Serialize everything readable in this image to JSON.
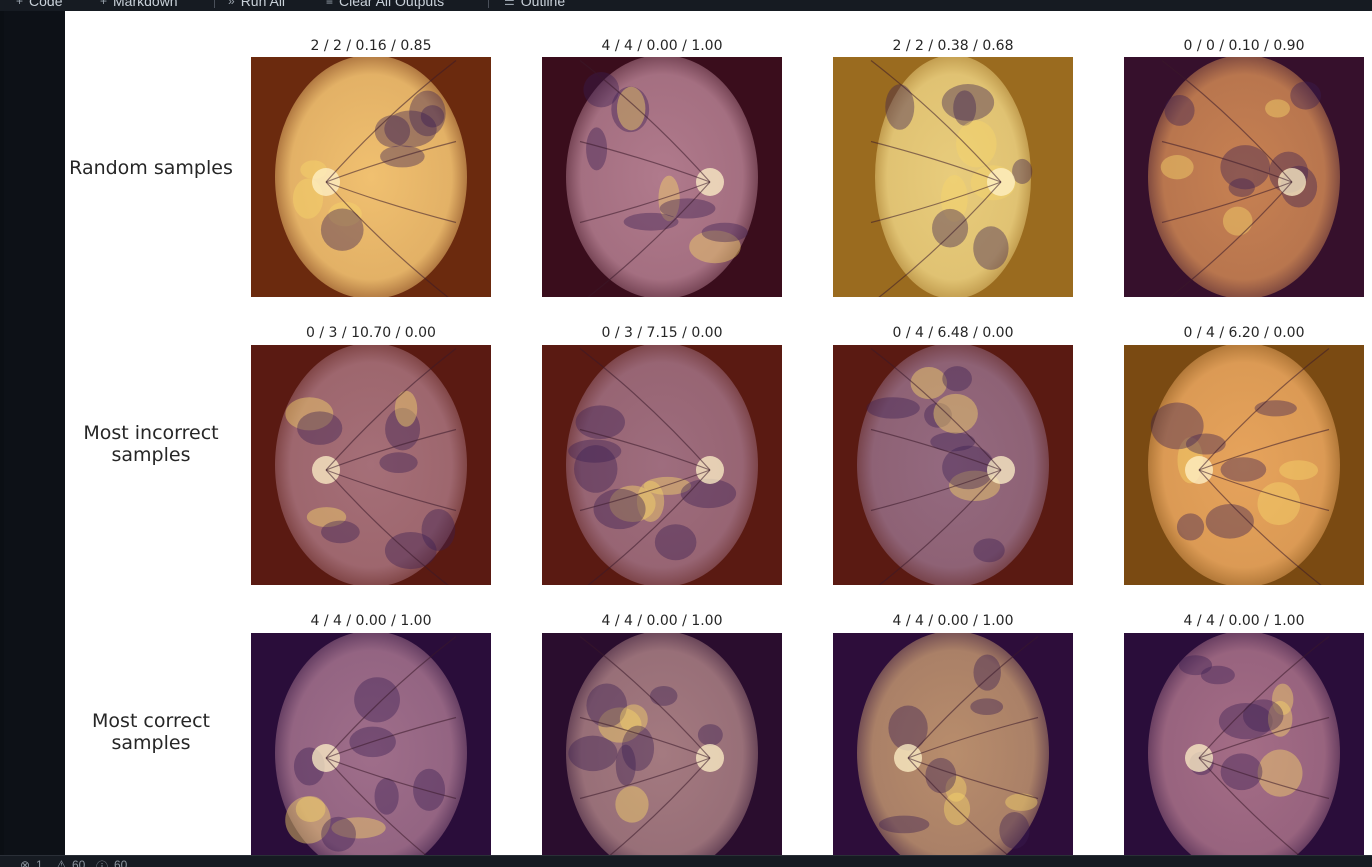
{
  "toolbar": {
    "items": [
      {
        "icon": "plus-icon",
        "label": "Code"
      },
      {
        "icon": "plus-icon",
        "label": "Markdown"
      },
      {
        "icon": "run-all-icon",
        "label": "Run All"
      },
      {
        "icon": "clear-outputs-icon",
        "label": "Clear All Outputs"
      },
      {
        "icon": "outline-icon",
        "label": "Outline"
      }
    ]
  },
  "status_bar": {
    "items": [
      {
        "icon": "error-icon",
        "label": "1"
      },
      {
        "icon": "warning-icon",
        "label": "60"
      },
      {
        "icon": "info-icon",
        "label": "60"
      }
    ]
  },
  "figure": {
    "rows": [
      {
        "label": "Random samples",
        "cells": [
          {
            "title": "2 / 2 / 0.16 / 0.85",
            "bg": "#6b2a0e",
            "fundus": "#f0c070",
            "side": "left"
          },
          {
            "title": "4 / 4 / 0.00 / 1.00",
            "bg": "#3a0d1c",
            "fundus": "#b07a8c",
            "side": "right"
          },
          {
            "title": "2 / 2 / 0.38 / 0.68",
            "bg": "#9a6b1f",
            "fundus": "#e8cc7c",
            "side": "right"
          },
          {
            "title": "0 / 0 / 0.10 / 0.90",
            "bg": "#36102c",
            "fundus": "#c78152",
            "side": "right"
          }
        ]
      },
      {
        "label": "Most incorrect samples",
        "cells": [
          {
            "title": "0 / 3 / 10.70 / 0.00",
            "bg": "#5a1a12",
            "fundus": "#a56f78",
            "side": "left"
          },
          {
            "title": "0 / 3 / 7.15 / 0.00",
            "bg": "#5a1a12",
            "fundus": "#9e6d7e",
            "side": "right"
          },
          {
            "title": "0 / 4 / 6.48 / 0.00",
            "bg": "#5a1a12",
            "fundus": "#946a80",
            "side": "right"
          },
          {
            "title": "0 / 4 / 6.20 / 0.00",
            "bg": "#7a4a12",
            "fundus": "#e6a35c",
            "side": "left"
          }
        ]
      },
      {
        "label": "Most correct samples",
        "cells": [
          {
            "title": "4 / 4 / 0.00 / 1.00",
            "bg": "#2a0d3a",
            "fundus": "#9f6e8a",
            "side": "left"
          },
          {
            "title": "4 / 4 / 0.00 / 1.00",
            "bg": "#2a0d2e",
            "fundus": "#a47a80",
            "side": "right"
          },
          {
            "title": "4 / 4 / 0.00 / 1.00",
            "bg": "#2d0d3a",
            "fundus": "#b88d6c",
            "side": "left"
          },
          {
            "title": "4 / 4 / 0.00 / 1.00",
            "bg": "#2a0d3a",
            "fundus": "#a46d86",
            "side": "left"
          }
        ]
      }
    ]
  }
}
